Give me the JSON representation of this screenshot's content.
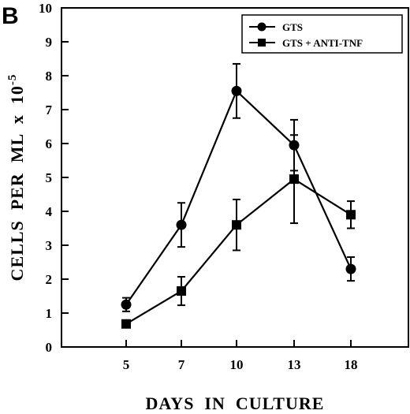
{
  "panel_label": "B",
  "chart_data": {
    "type": "line",
    "x_tick_labels": [
      "5",
      "7",
      "10",
      "13",
      "18"
    ],
    "y_tick_labels": [
      "0",
      "1",
      "2",
      "3",
      "4",
      "5",
      "6",
      "7",
      "8",
      "9",
      "10"
    ],
    "ylim": [
      0,
      10
    ],
    "xlabel": "DAYS  IN  CULTURE",
    "ylabel_main": "CELLS  PER  ML  x  10",
    "ylabel_exponent": "-5",
    "legend_position": "top-right",
    "series": [
      {
        "name": "GTS",
        "marker": "circle",
        "color": "#000000",
        "values": [
          1.25,
          3.6,
          7.55,
          5.95,
          2.3
        ],
        "errors": [
          0.2,
          0.65,
          0.8,
          0.75,
          0.35
        ]
      },
      {
        "name": "GTS + ANTI-TNF",
        "marker": "square",
        "color": "#000000",
        "values": [
          0.68,
          1.65,
          3.6,
          4.95,
          3.9
        ],
        "errors": [
          0.08,
          0.42,
          0.75,
          1.3,
          0.4
        ]
      }
    ]
  }
}
